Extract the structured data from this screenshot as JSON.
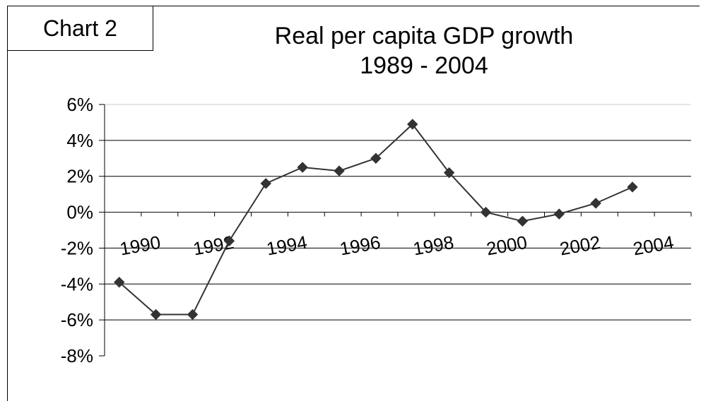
{
  "chart_label": "Chart 2",
  "chart_data": {
    "type": "line",
    "title": [
      "Real per capita GDP growth",
      "1989 - 2004"
    ],
    "xlabel": "",
    "ylabel": "",
    "x_ticks": [
      "1990",
      "1992",
      "1994",
      "1996",
      "1998",
      "2000",
      "2002",
      "2004"
    ],
    "y_ticks": [
      "6%",
      "4%",
      "2%",
      "0%",
      "-2%",
      "-4%",
      "-6%",
      "-8%"
    ],
    "ylim": [
      -8,
      6
    ],
    "grid": true,
    "legend": "none",
    "series": [
      {
        "marker": "diamond",
        "color": "#333333",
        "x": [
          1989.4,
          1990.4,
          1991.4,
          1992.4,
          1993.4,
          1994.4,
          1995.4,
          1996.4,
          1997.4,
          1998.4,
          1999.4,
          2000.4,
          2001.4,
          2002.4,
          2003.4,
          2004.4
        ],
        "values": [
          -3.9,
          -5.7,
          -5.7,
          -1.6,
          1.6,
          2.5,
          2.3,
          3.0,
          4.9,
          2.2,
          0.0,
          -0.5,
          -0.1,
          0.5,
          1.4,
          null
        ]
      }
    ]
  }
}
